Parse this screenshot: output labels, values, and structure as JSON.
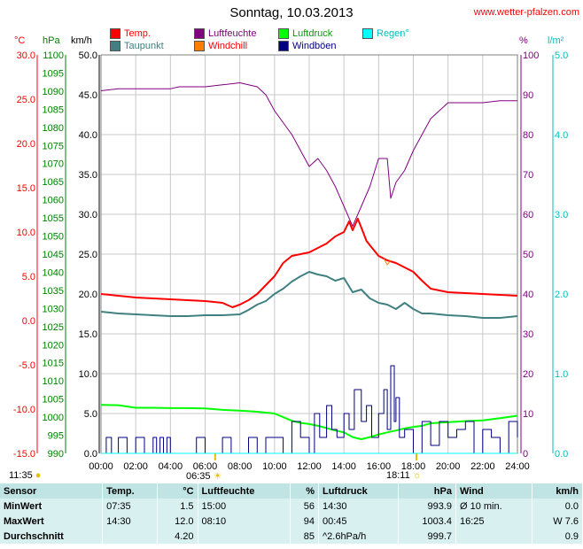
{
  "header": {
    "title": "Sonntag, 10.03.2013",
    "site": "www.wetter-pfalzen.com"
  },
  "legend": [
    {
      "label": "Temp.",
      "color": "#ff0000"
    },
    {
      "label": "Luftfeuchte",
      "color": "#800080"
    },
    {
      "label": "Luftdruck",
      "color": "#00ff00"
    },
    {
      "label": "Regen°",
      "color": "#00ffff"
    },
    {
      "label": "Taupunkt",
      "color": "#408080"
    },
    {
      "label": "Windchill",
      "color": "#ff8000"
    },
    {
      "label": "Windböen",
      "color": "#000080"
    }
  ],
  "units": {
    "temp": "°C",
    "press": "hPa",
    "wind": "km/h",
    "hum": "%",
    "rain": "l/m²"
  },
  "sun": {
    "rise_text": "06:35",
    "set_text": "18:11",
    "left_text": "11:35"
  },
  "chart_data": {
    "type": "line",
    "title": "Sonntag, 10.03.2013",
    "x_ticks": [
      "00:00",
      "02:00",
      "04:00",
      "06:00",
      "08:00",
      "10:00",
      "12:00",
      "14:00",
      "16:00",
      "18:00",
      "20:00",
      "22:00",
      "24:00"
    ],
    "axes": {
      "temp": {
        "ticks": [
          "30.0",
          "25.0",
          "20.0",
          "15.0",
          "10.0",
          "5.0",
          "0.0",
          "-5.0",
          "-10.0",
          "-15.0"
        ],
        "range": [
          -15,
          30
        ]
      },
      "press": {
        "ticks": [
          "1100",
          "1095",
          "1090",
          "1085",
          "1080",
          "1075",
          "1070",
          "1065",
          "1060",
          "1055",
          "1050",
          "1045",
          "1040",
          "1035",
          "1030",
          "1025",
          "1020",
          "1015",
          "1010",
          "1005",
          "1000",
          "995",
          "990"
        ],
        "range": [
          990,
          1100
        ]
      },
      "wind": {
        "ticks": [
          "50.0",
          "45.0",
          "40.0",
          "35.0",
          "30.0",
          "25.0",
          "20.0",
          "15.0",
          "10.0",
          "5.0",
          "0.0"
        ],
        "range": [
          0,
          50
        ]
      },
      "hum": {
        "ticks": [
          "100",
          "90",
          "80",
          "70",
          "60",
          "50",
          "40",
          "30",
          "20",
          "10",
          "0"
        ],
        "range": [
          0,
          100
        ]
      },
      "rain": {
        "ticks": [
          "5.0",
          "4.0",
          "3.0",
          "2.0",
          "1.0",
          "0.0"
        ],
        "range": [
          0,
          5
        ]
      }
    },
    "series": [
      {
        "name": "Temp.",
        "axis": "temp",
        "color": "#ff0000",
        "x": [
          0,
          1,
          2,
          3,
          4,
          5,
          6,
          7,
          7.58,
          8,
          8.5,
          9,
          9.5,
          10,
          10.5,
          11,
          11.5,
          12,
          12.5,
          13,
          13.5,
          14,
          14.3,
          14.5,
          14.8,
          15,
          15.3,
          15.5,
          16,
          16.5,
          17,
          17.5,
          18,
          18.5,
          19,
          20,
          21,
          22,
          23,
          24
        ],
        "y": [
          3.0,
          2.8,
          2.6,
          2.5,
          2.4,
          2.3,
          2.2,
          2.0,
          1.5,
          1.8,
          2.3,
          3.0,
          4.0,
          5.0,
          6.5,
          7.3,
          7.5,
          7.7,
          8.2,
          8.7,
          9.5,
          10.0,
          11.2,
          10.2,
          11.5,
          10.5,
          9.0,
          8.5,
          7.3,
          6.8,
          6.5,
          6.0,
          5.5,
          4.5,
          3.6,
          3.2,
          3.1,
          3.0,
          2.9,
          2.8
        ]
      },
      {
        "name": "Taupunkt",
        "axis": "temp",
        "color": "#408080",
        "x": [
          0,
          1,
          2,
          3,
          4,
          5,
          6,
          7,
          8,
          8.5,
          9,
          9.5,
          10,
          10.5,
          11,
          11.5,
          12,
          12.5,
          13,
          13.5,
          14,
          14.5,
          15,
          15.5,
          16,
          16.5,
          17,
          17.5,
          18,
          18.5,
          19,
          20,
          21,
          22,
          23,
          24
        ],
        "y": [
          1.0,
          0.8,
          0.7,
          0.6,
          0.5,
          0.5,
          0.6,
          0.6,
          0.7,
          1.2,
          1.8,
          2.2,
          3.0,
          3.6,
          4.4,
          5.0,
          5.5,
          5.2,
          5.0,
          4.5,
          4.8,
          3.2,
          3.5,
          2.5,
          2.0,
          1.8,
          1.3,
          2.0,
          1.3,
          0.8,
          0.8,
          0.6,
          0.5,
          0.3,
          0.3,
          0.5
        ]
      },
      {
        "name": "Windchill",
        "axis": "temp",
        "color": "#ff8000",
        "x": [
          16.3,
          16.5,
          16.7
        ],
        "y": [
          7.0,
          6.3,
          6.8
        ]
      },
      {
        "name": "Luftfeuchte",
        "axis": "hum",
        "color": "#800080",
        "x": [
          0,
          1,
          2,
          3,
          4,
          4.5,
          5,
          6,
          7,
          8,
          9,
          9.5,
          10,
          10.5,
          11,
          11.5,
          12,
          12.5,
          13,
          13.5,
          14,
          14.5,
          15,
          15.5,
          16,
          16.5,
          16.7,
          17,
          17.5,
          18,
          18.5,
          19,
          19.5,
          20,
          21,
          22,
          23,
          24
        ],
        "y": [
          91,
          91.5,
          91.5,
          91.5,
          91.5,
          92,
          92,
          92,
          92.5,
          93,
          92,
          90,
          86,
          83,
          80,
          76,
          72,
          74,
          71,
          67,
          62,
          57,
          62,
          67,
          74,
          74,
          64,
          68,
          71,
          76,
          80,
          84,
          86,
          88,
          88,
          88,
          88.5,
          88.5
        ]
      },
      {
        "name": "Luftdruck",
        "axis": "press",
        "color": "#00ff00",
        "x": [
          0,
          1,
          2,
          3,
          4,
          5,
          6,
          7,
          8,
          9,
          10,
          10.5,
          11,
          11.5,
          12,
          12.5,
          13,
          13.5,
          14,
          14.5,
          15,
          15.5,
          16,
          16.5,
          17,
          17.5,
          18,
          18.5,
          19,
          20,
          21,
          22,
          23,
          24
        ],
        "y": [
          1003.4,
          1003.3,
          1002.6,
          1002.6,
          1002.5,
          1002.5,
          1002.4,
          1002.0,
          1001.8,
          1001.5,
          1001.0,
          1000.0,
          999.0,
          998.4,
          998.1,
          997.6,
          997.0,
          996.3,
          995.8,
          994.5,
          993.9,
          994.5,
          995.2,
          995.8,
          996.3,
          996.9,
          997.3,
          997.6,
          998.3,
          998.6,
          998.9,
          999.1,
          999.7,
          1000.4
        ]
      },
      {
        "name": "Windböen",
        "axis": "wind",
        "color": "#000080",
        "x": [
          0,
          0.3,
          0.5,
          0.6,
          0.8,
          1,
          1.5,
          2,
          2.5,
          3,
          3.2,
          3.4,
          3.6,
          3.8,
          4,
          4.5,
          5,
          5.5,
          6,
          6.5,
          7,
          7.5,
          8,
          8.5,
          9,
          9.5,
          10,
          10.5,
          11,
          11.5,
          12,
          12.3,
          12.6,
          13,
          13.3,
          13.6,
          14,
          14.3,
          14.6,
          15,
          15.3,
          15.6,
          16,
          16.3,
          16.5,
          16.7,
          16.9,
          17,
          17.2,
          17.5,
          18,
          18.5,
          19,
          19.5,
          20,
          20.5,
          21,
          21.5,
          22,
          22.5,
          23,
          23.5,
          24
        ],
        "y": [
          0,
          2,
          2,
          0,
          0,
          2,
          0,
          2,
          0,
          2,
          0,
          2,
          0,
          2,
          0,
          0,
          0,
          2,
          0,
          0,
          2,
          0,
          0,
          2,
          0,
          2,
          2,
          0,
          4,
          2,
          0,
          5,
          2,
          6,
          3,
          2,
          5,
          3,
          8,
          4,
          6,
          2,
          5,
          8,
          3,
          11,
          4,
          7,
          2,
          3,
          0,
          4,
          1,
          4,
          2,
          3,
          4,
          0,
          3,
          2,
          0,
          4,
          2
        ]
      },
      {
        "name": "Regen°",
        "axis": "rain",
        "color": "#00ffff",
        "x": [
          0,
          24
        ],
        "y": [
          0,
          0
        ]
      }
    ]
  },
  "stats": {
    "headers": [
      "Sensor",
      "Temp.",
      "°C",
      "Luftfeuchte",
      "%",
      "Luftdruck",
      "hPa",
      "Wind",
      "km/h"
    ],
    "rows": [
      [
        "MinWert",
        "07:35",
        "1.5",
        "15:00",
        "56",
        "14:30",
        "993.9",
        "Ø 10 min.",
        "0.0"
      ],
      [
        "MaxWert",
        "14:30",
        "12.0",
        "08:10",
        "94",
        "00:45",
        "1003.4",
        "16:25",
        "W 7.6"
      ],
      [
        "Durchschnitt",
        "",
        "4.20",
        "",
        "85",
        "^2.6hPa/h",
        "999.7",
        "",
        "0.9"
      ]
    ]
  }
}
